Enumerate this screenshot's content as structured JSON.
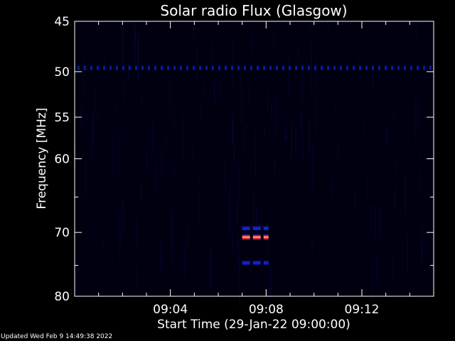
{
  "chart_data": {
    "type": "heatmap",
    "title": "Solar radio Flux (Glasgow)",
    "xlabel": "Start Time (29-Jan-22 09:00:00)",
    "ylabel": "Frequency [MHz]",
    "xlim_minutes": [
      0,
      15
    ],
    "ylim_mhz": [
      45,
      80
    ],
    "y_scale": "log",
    "y_reversed": true,
    "x_ticks": [
      {
        "minute": 4,
        "label": "09:04"
      },
      {
        "minute": 8,
        "label": "09:08"
      },
      {
        "minute": 12,
        "label": "09:12"
      }
    ],
    "y_ticks": [
      {
        "mhz": 45,
        "label": "45"
      },
      {
        "mhz": 50,
        "label": "50"
      },
      {
        "mhz": 55,
        "label": "55"
      },
      {
        "mhz": 60,
        "label": "60"
      },
      {
        "mhz": 70,
        "label": "70"
      },
      {
        "mhz": 80,
        "label": "80"
      }
    ],
    "y_minor_ticks_mhz": [
      65,
      75
    ],
    "background_color": "#000010",
    "bands": [
      {
        "mhz": 49.6,
        "t_start": 0,
        "t_end": 15,
        "intensity": "low",
        "color": "#0a1aa0",
        "dashed": true
      },
      {
        "mhz": 69.4,
        "t_start": 7.0,
        "t_end": 8.1,
        "intensity": "medium",
        "color": "#1020e0",
        "dashed": true
      },
      {
        "mhz": 70.7,
        "t_start": 7.0,
        "t_end": 8.1,
        "intensity": "high",
        "color": "#ff3010",
        "dashed": true
      },
      {
        "mhz": 74.6,
        "t_start": 7.0,
        "t_end": 8.1,
        "intensity": "medium",
        "color": "#1020d0",
        "dashed": true
      }
    ],
    "grid": false,
    "legend": "none"
  },
  "footer": {
    "updated": "Updated Wed Feb  9 14:49:38 2022"
  }
}
